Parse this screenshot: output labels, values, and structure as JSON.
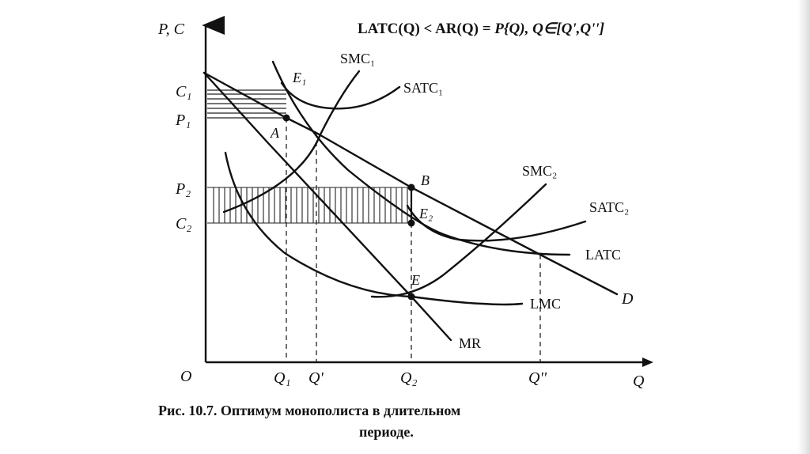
{
  "formula": {
    "lhs": "LATC(Q) < AR(Q) = ",
    "rhs": "P{Q), Q∈[Q',Q''] "
  },
  "axes": {
    "y_label": "P, C",
    "x_label": "Q",
    "origin": "O"
  },
  "y_ticks": [
    "C₁",
    "P₁",
    "P₂",
    "C₂"
  ],
  "x_ticks": [
    "Q₁",
    "Q'",
    "Q₂",
    "Q''"
  ],
  "curves": {
    "smc1": "SMC₁",
    "satc1": "SATC₁",
    "smc2": "SMC₂",
    "satc2": "SATC₂",
    "latc": "LATC",
    "lmc": "LMC",
    "mr": "MR",
    "d": "D"
  },
  "points": {
    "e1": "E₁",
    "a": "A",
    "b": "B",
    "e2": "E₂",
    "e": "E"
  },
  "caption": {
    "line1": "Рис. 10.7. Оптимум монополиста в длительном",
    "line2": "периоде."
  }
}
